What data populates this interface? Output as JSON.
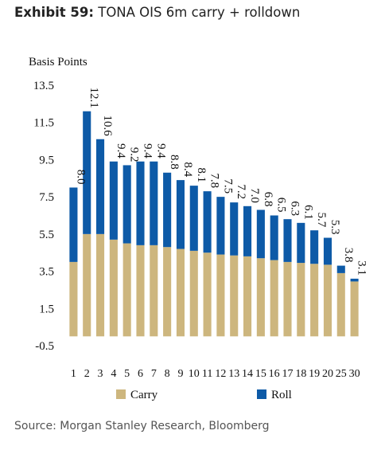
{
  "header": {
    "exhibit_label": "Exhibit 59:",
    "title_text": "TONA OIS 6m carry + rolldown"
  },
  "footer": {
    "source": "Source: Morgan Stanley Research, Bloomberg"
  },
  "chart_data": {
    "type": "bar",
    "stacked": true,
    "ylabel": "Basis Points",
    "ylim": [
      -0.5,
      13.5
    ],
    "yticks": [
      "13.5",
      "11.5",
      "9.5",
      "7.5",
      "5.5",
      "3.5",
      "1.5",
      "-0.5"
    ],
    "ytick_values": [
      13.5,
      11.5,
      9.5,
      7.5,
      5.5,
      3.5,
      1.5,
      -0.5
    ],
    "grid": false,
    "legend": "bottom",
    "colors": {
      "carry": "#cdb67e",
      "roll": "#0d5aa7"
    },
    "categories": [
      "1",
      "2",
      "3",
      "4",
      "5",
      "6",
      "7",
      "8",
      "9",
      "10",
      "11",
      "12",
      "13",
      "14",
      "15",
      "16",
      "17",
      "18",
      "19",
      "20",
      "25",
      "30"
    ],
    "series": [
      {
        "name": "Carry",
        "values": [
          4.0,
          5.5,
          5.5,
          5.2,
          5.0,
          4.9,
          4.9,
          4.8,
          4.7,
          4.6,
          4.5,
          4.4,
          4.35,
          4.3,
          4.2,
          4.1,
          4.0,
          3.95,
          3.9,
          3.85,
          3.4,
          2.95
        ]
      },
      {
        "name": "Roll",
        "values": [
          4.0,
          6.6,
          5.1,
          4.2,
          4.2,
          4.5,
          4.5,
          4.0,
          3.7,
          3.5,
          3.3,
          3.1,
          2.85,
          2.7,
          2.6,
          2.4,
          2.3,
          2.15,
          1.8,
          1.45,
          0.4,
          0.15
        ]
      }
    ],
    "totals": [
      "8.0",
      "12.1",
      "10.6",
      "9.4",
      "9.2",
      "9.4",
      "9.4",
      "8.8",
      "8.4",
      "8.1",
      "7.8",
      "7.5",
      "7.2",
      "7.0",
      "6.8",
      "6.5",
      "6.3",
      "6.1",
      "5.7",
      "5.3",
      "3.8",
      "3.1"
    ]
  }
}
